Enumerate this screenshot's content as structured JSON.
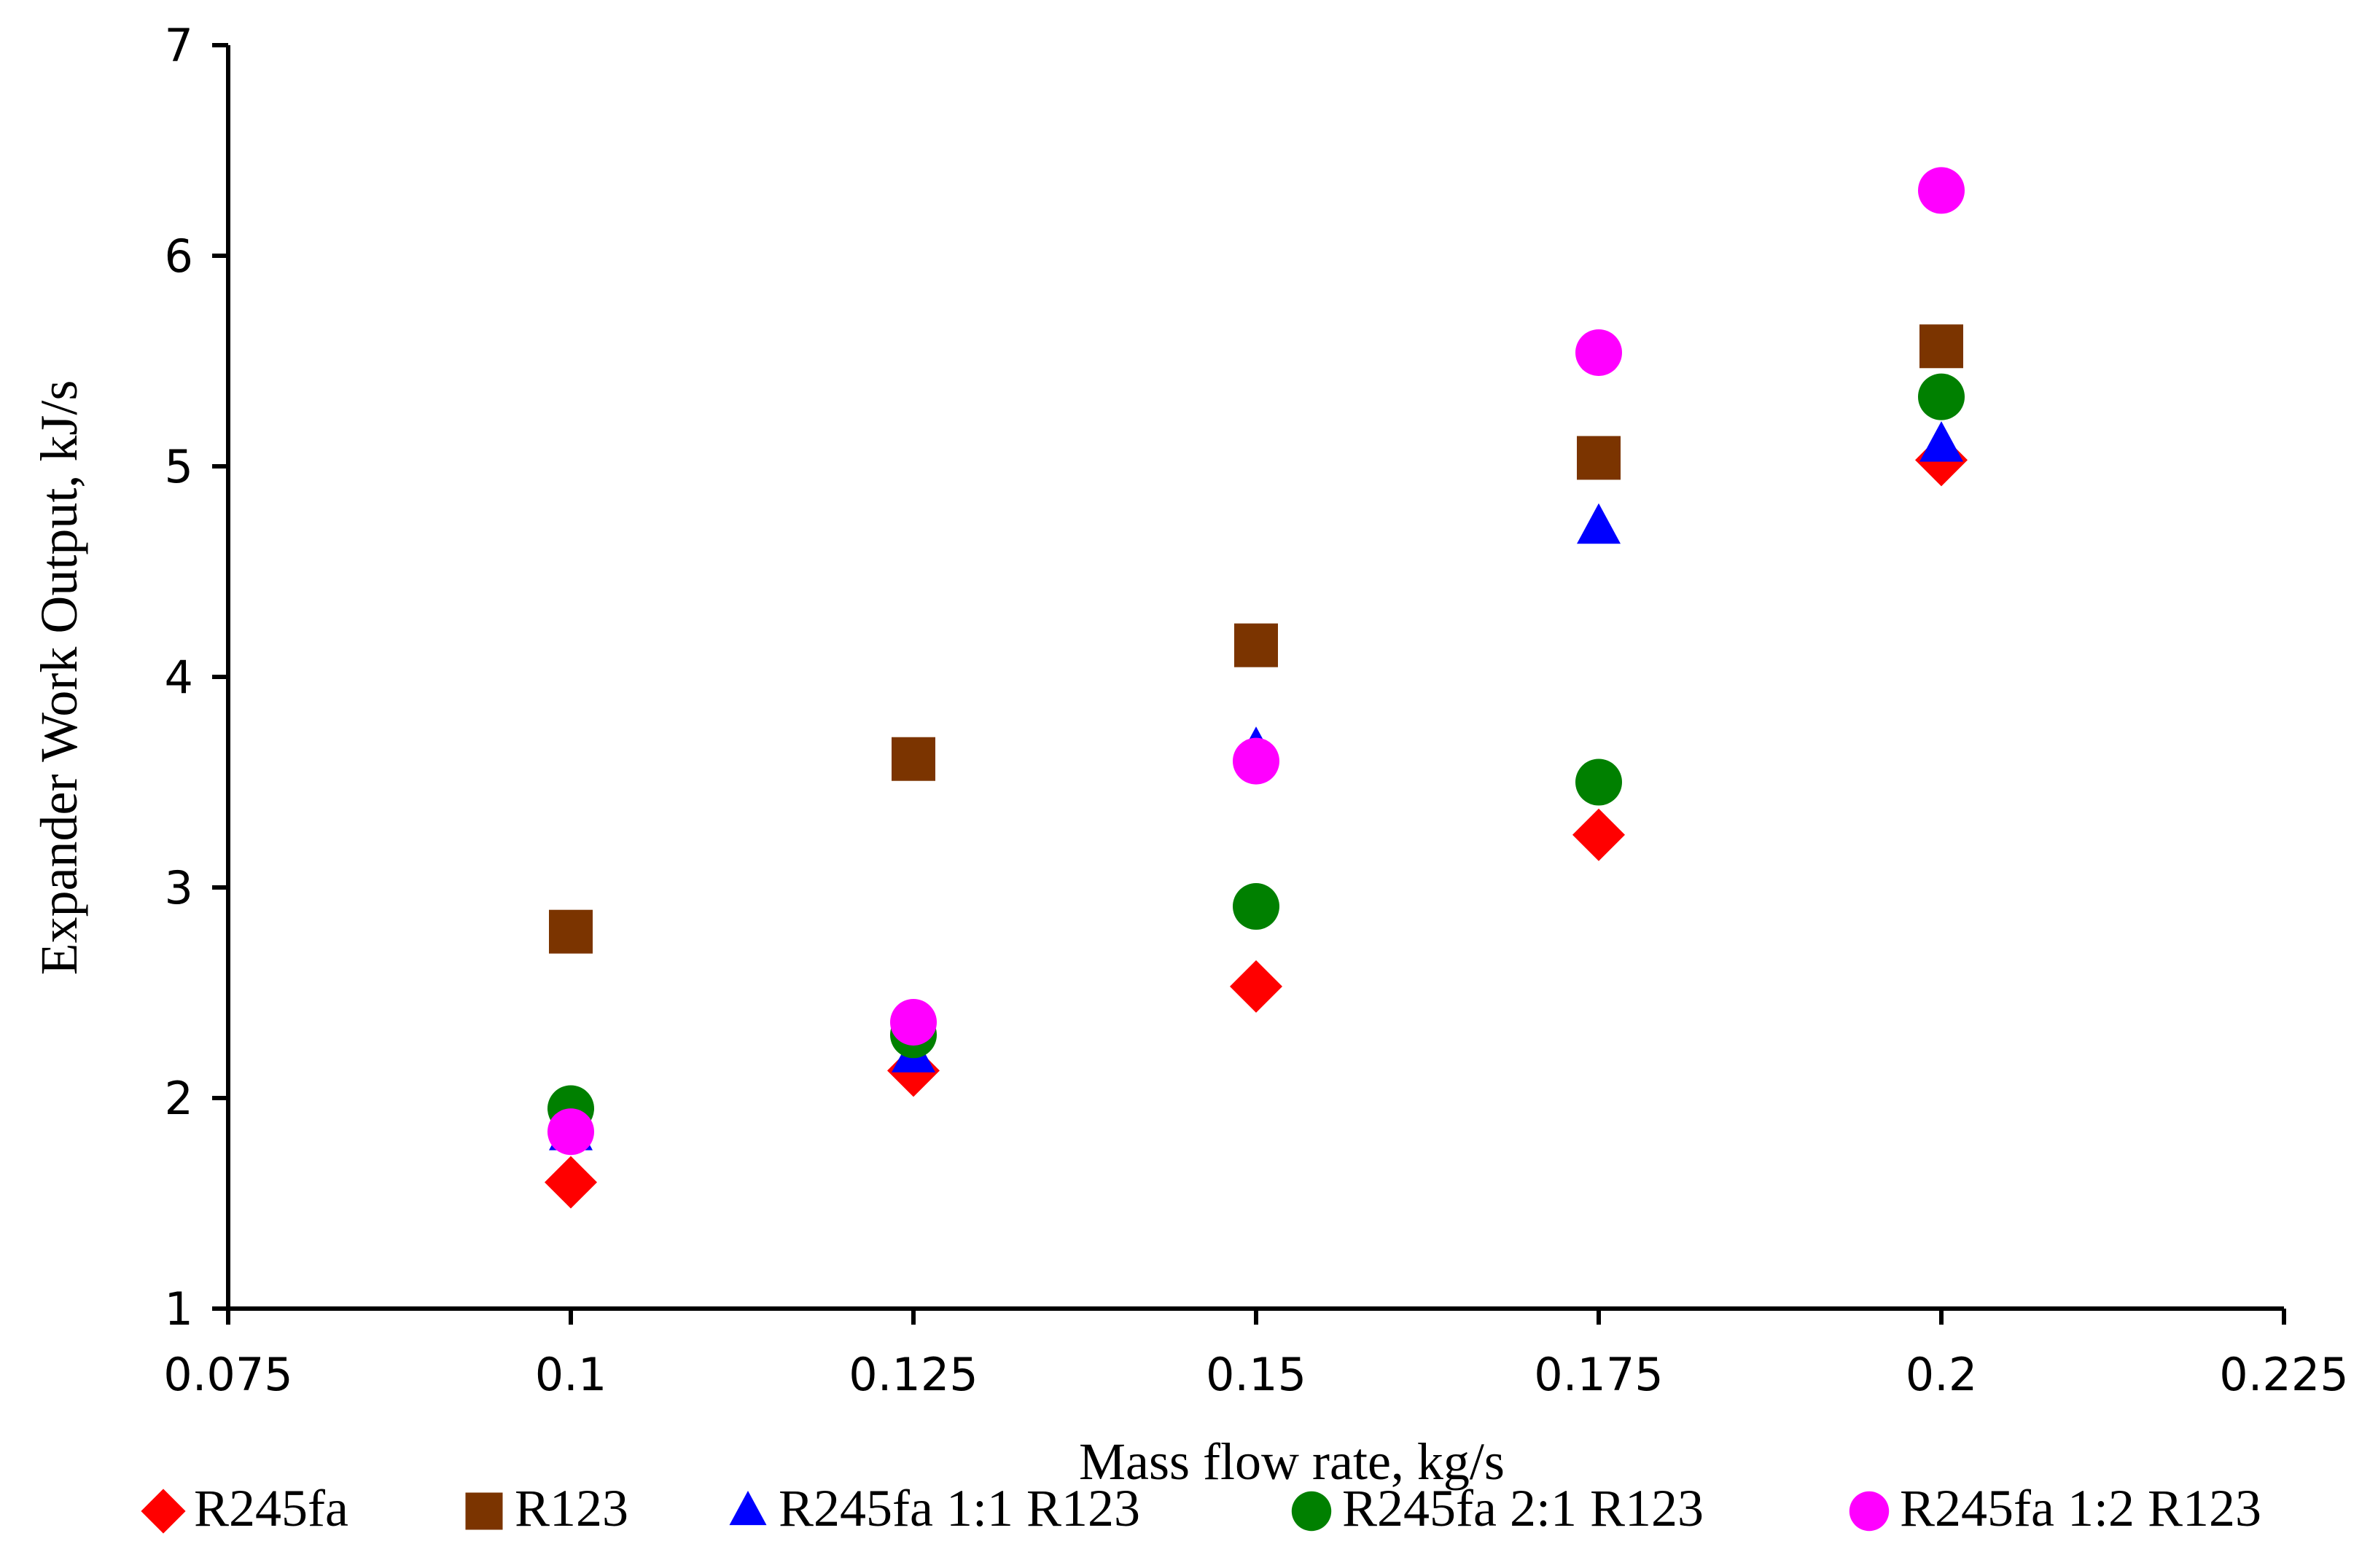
{
  "chart_data": {
    "type": "scatter",
    "title": "",
    "xlabel": "Mass flow rate, kg/s",
    "ylabel": "Expander Work Output, kJ/s",
    "xlim": [
      0.075,
      0.225
    ],
    "ylim": [
      1,
      7
    ],
    "xticks": [
      0.075,
      0.1,
      0.125,
      0.15,
      0.175,
      0.2,
      0.225
    ],
    "xtick_labels": [
      "0.075",
      "0.1",
      "0.125",
      "0.15",
      "0.175",
      "0.2",
      "0.225"
    ],
    "yticks": [
      1,
      2,
      3,
      4,
      5,
      6,
      7
    ],
    "ytick_labels": [
      "1",
      "2",
      "3",
      "4",
      "5",
      "6",
      "7"
    ],
    "grid": false,
    "legend_position": "bottom",
    "series": [
      {
        "name": "R245fa",
        "marker": "diamond",
        "color": "#ff0000",
        "x": [
          0.1,
          0.125,
          0.15,
          0.175,
          0.2
        ],
        "y": [
          1.6,
          2.13,
          2.53,
          3.25,
          5.03
        ]
      },
      {
        "name": "R123",
        "marker": "square",
        "color": "#7b3400",
        "x": [
          0.1,
          0.125,
          0.15,
          0.175,
          0.2
        ],
        "y": [
          2.79,
          3.61,
          4.15,
          5.04,
          5.57
        ]
      },
      {
        "name": "R245fa 1:1 R123",
        "marker": "triangle",
        "color": "#0000ff",
        "x": [
          0.1,
          0.125,
          0.15,
          0.175,
          0.2
        ],
        "y": [
          1.83,
          2.2,
          3.65,
          4.71,
          5.1
        ]
      },
      {
        "name": "R245fa 2:1 R123",
        "marker": "circle",
        "color": "#008000",
        "x": [
          0.1,
          0.125,
          0.15,
          0.175,
          0.2
        ],
        "y": [
          1.95,
          2.3,
          2.91,
          3.5,
          5.33
        ]
      },
      {
        "name": "R245fa 1:2 R123",
        "marker": "circle",
        "color": "#ff00ff",
        "x": [
          0.1,
          0.125,
          0.15,
          0.175,
          0.2
        ],
        "y": [
          1.84,
          2.36,
          3.6,
          5.54,
          6.31
        ]
      }
    ]
  }
}
